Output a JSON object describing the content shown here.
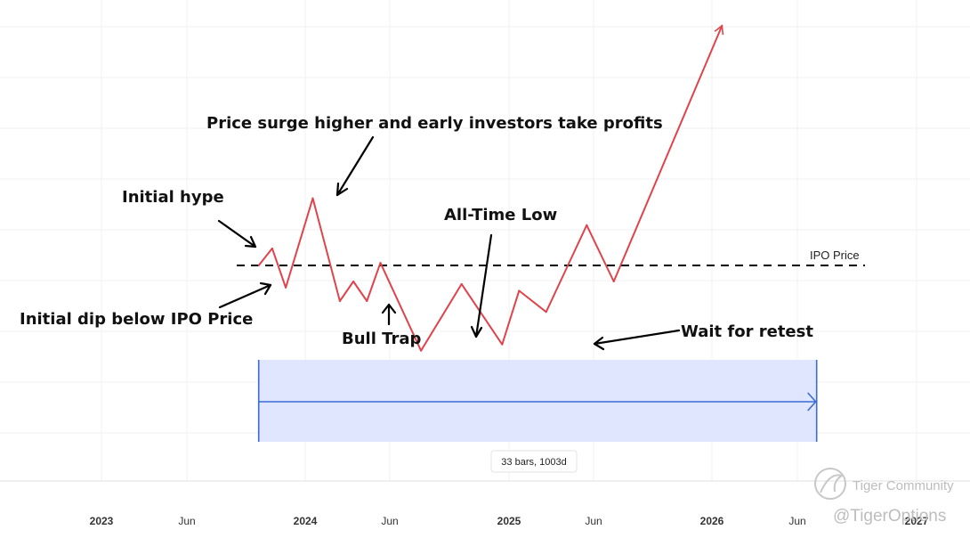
{
  "chart_data": {
    "type": "line",
    "title": "",
    "xlabel": "",
    "ylabel": "",
    "x_ticks": [
      {
        "label": "2023",
        "major": true
      },
      {
        "label": "Jun",
        "major": false
      },
      {
        "label": "2024",
        "major": true
      },
      {
        "label": "Jun",
        "major": false
      },
      {
        "label": "2025",
        "major": true
      },
      {
        "label": "Jun",
        "major": false
      },
      {
        "label": "2026",
        "major": true
      },
      {
        "label": "Jun",
        "major": false
      },
      {
        "label": "2027",
        "major": true
      }
    ],
    "x_unit": "months since Jan 2023",
    "y_unit": "relative price (IPO price = 0)",
    "series": [
      {
        "color": "#e0434b",
        "points": [
          [
            9.3,
            0.0
          ],
          [
            10.1,
            0.33
          ],
          [
            10.9,
            -0.43
          ],
          [
            12.5,
            1.3
          ],
          [
            14.1,
            -0.69
          ],
          [
            14.9,
            -0.31
          ],
          [
            15.7,
            -0.69
          ],
          [
            16.5,
            0.05
          ],
          [
            18.9,
            -1.65
          ],
          [
            21.3,
            -0.36
          ],
          [
            23.7,
            -1.53
          ],
          [
            24.7,
            -0.49
          ],
          [
            26.3,
            -0.9
          ],
          [
            28.7,
            0.78
          ],
          [
            30.3,
            -0.31
          ],
          [
            36.7,
            4.64
          ]
        ]
      }
    ],
    "ipo_line": {
      "value": 0.0,
      "label": "IPO Price",
      "color": "#000000"
    },
    "range_tool": {
      "label": "33 bars, 1003d",
      "x_start": 9.3,
      "x_end": 42.3
    },
    "annotations": [
      {
        "text": "Price surge higher and early investors take profits"
      },
      {
        "text": "Initial hype"
      },
      {
        "text": "All-Time Low"
      },
      {
        "text": "Initial dip below IPO Price"
      },
      {
        "text": "Bull Trap"
      },
      {
        "text": "Wait for retest"
      }
    ],
    "grid": true
  },
  "watermark": {
    "line1": "Tiger Community",
    "line2": "@TigerOptions"
  }
}
